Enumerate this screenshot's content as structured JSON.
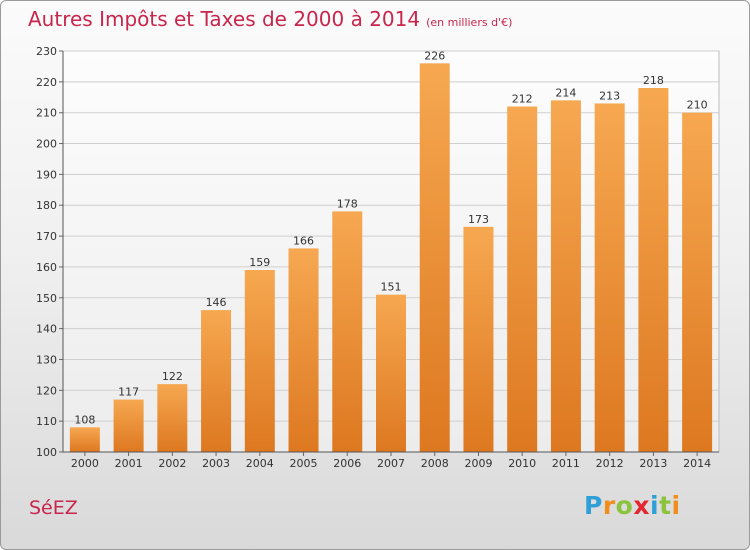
{
  "header": {
    "title": "Autres Impôts et Taxes de 2000 à 2014",
    "subtitle": "(en milliers d'€)"
  },
  "footer": {
    "place": "SéEZ",
    "logo_letters": [
      "P",
      "r",
      "o",
      "x",
      "i",
      "t",
      "i"
    ],
    "logo_colors": [
      "#2f9fd8",
      "#f18d1d",
      "#8bc33e",
      "#e3262f",
      "#2f9fd8",
      "#8bc33e",
      "#f18d1d"
    ]
  },
  "colors": {
    "bar_light": "#f6a851",
    "bar_dark": "#dd7820",
    "title": "#c8264c",
    "grid": "#cfcfcf"
  },
  "chart_data": {
    "type": "bar",
    "title": "Autres Impôts et Taxes de 2000 à 2014",
    "subtitle": "(en milliers d'€)",
    "xlabel": "",
    "ylabel": "",
    "categories": [
      "2000",
      "2001",
      "2002",
      "2003",
      "2004",
      "2005",
      "2006",
      "2007",
      "2008",
      "2009",
      "2010",
      "2011",
      "2012",
      "2013",
      "2014"
    ],
    "values": [
      108,
      117,
      122,
      146,
      159,
      166,
      178,
      151,
      226,
      173,
      212,
      214,
      213,
      218,
      210
    ],
    "ylim": [
      100,
      230
    ],
    "yticks": [
      100,
      110,
      120,
      130,
      140,
      150,
      160,
      170,
      180,
      190,
      200,
      210,
      220,
      230
    ],
    "grid": true,
    "data_labels": true
  }
}
